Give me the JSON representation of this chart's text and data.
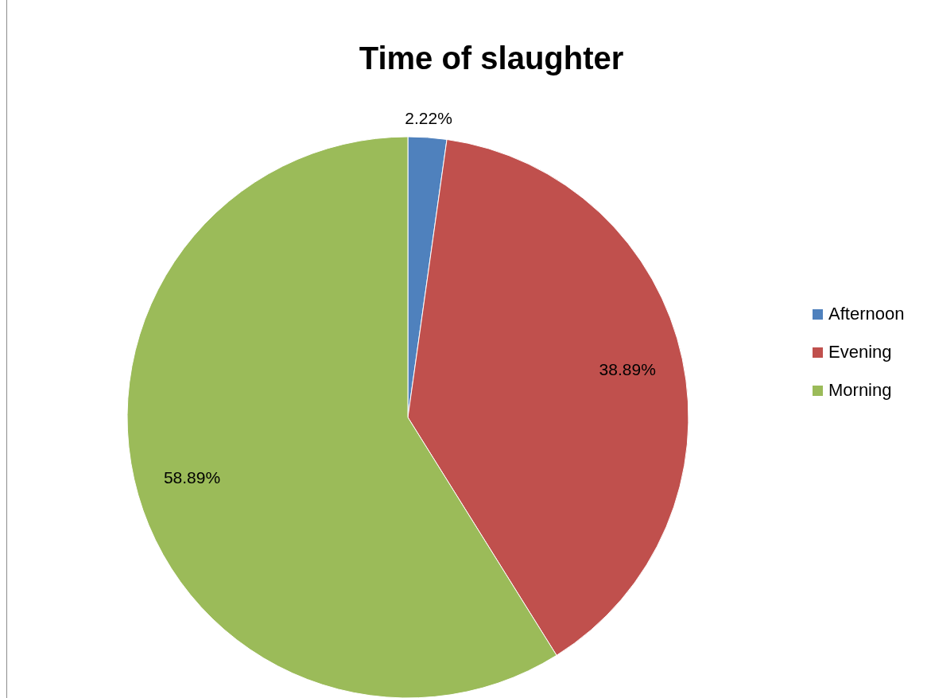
{
  "chart_data": {
    "type": "pie",
    "title": "Time of slaughter",
    "categories": [
      "Afternoon",
      "Evening",
      "Morning"
    ],
    "values": [
      2.22,
      38.89,
      58.89
    ],
    "colors": [
      "#4f81bd",
      "#c0504d",
      "#9bbb59"
    ],
    "value_labels": [
      "2.22%",
      "38.89%",
      "58.89%"
    ],
    "legend": "right"
  }
}
